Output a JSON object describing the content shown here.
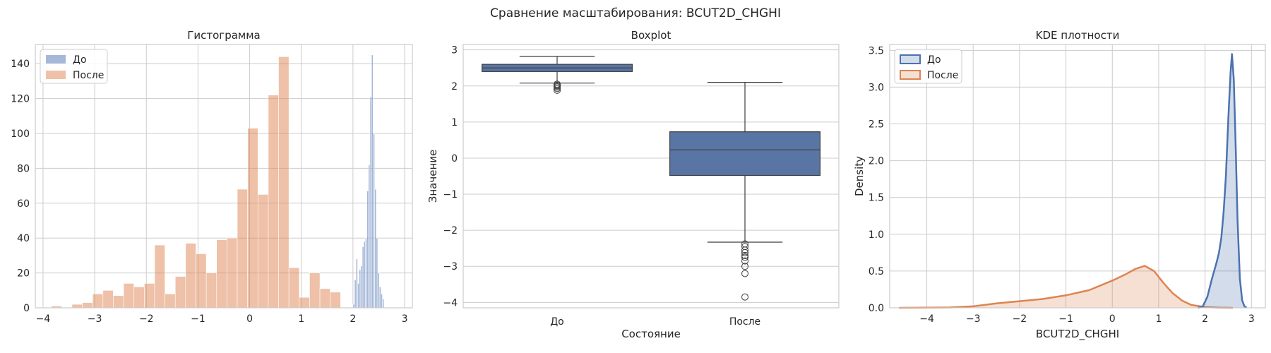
{
  "suptitle": "Сравнение масштабирования: BCUT2D_CHGHI",
  "colors": {
    "before": "#4c72b0",
    "after": "#dd8452",
    "box_fill": "#5875a4",
    "grid": "#cccccc",
    "spine": "#cccccc",
    "text": "#262626"
  },
  "chart_data": [
    {
      "type": "bar",
      "subtype": "histogram",
      "title": "Гистограмма",
      "xlabel": "",
      "ylabel": "",
      "xlim": [
        -4.15,
        3.15
      ],
      "ylim": [
        0,
        151
      ],
      "xticks": [
        -4,
        -3,
        -2,
        -1,
        0,
        1,
        2,
        3
      ],
      "yticks": [
        0,
        20,
        40,
        60,
        80,
        100,
        120,
        140
      ],
      "legend": {
        "position": "top-left",
        "entries": [
          "До",
          "После"
        ]
      },
      "series": [
        {
          "name": "После",
          "color": "#dd8452",
          "bin_start": -3.84,
          "bin_width": 0.2,
          "counts": [
            1,
            0,
            2,
            3,
            8,
            10,
            7,
            14,
            12,
            14,
            36,
            8,
            18,
            37,
            31,
            20,
            39,
            40,
            68,
            103,
            65,
            122,
            144,
            23,
            6,
            20,
            11,
            9
          ]
        },
        {
          "name": "До",
          "color": "#4c72b0",
          "bin_start": 2.0,
          "bin_width": 0.03,
          "counts": [
            2,
            16,
            28,
            14,
            22,
            24,
            35,
            38,
            40,
            67,
            82,
            121,
            145,
            100,
            68,
            40,
            20,
            12,
            8,
            5
          ]
        }
      ]
    },
    {
      "type": "box",
      "title": "Boxplot",
      "xlabel": "Состояние",
      "ylabel": "Значение",
      "ylim": [
        -4.15,
        3.15
      ],
      "yticks": [
        -4,
        -3,
        -2,
        -1,
        0,
        1,
        2,
        3
      ],
      "categories": [
        "До",
        "После"
      ],
      "boxes": [
        {
          "category": "До",
          "whisker_low": 2.08,
          "q1": 2.4,
          "median": 2.5,
          "q3": 2.6,
          "whisker_high": 2.82,
          "outliers": [
            1.88,
            1.93,
            1.97,
            2.0,
            2.02,
            2.05
          ]
        },
        {
          "category": "После",
          "whisker_low": -2.33,
          "q1": -0.48,
          "median": 0.23,
          "q3": 0.73,
          "whisker_high": 2.1,
          "outliers": [
            -2.38,
            -2.45,
            -2.55,
            -2.62,
            -2.7,
            -2.75,
            -2.85,
            -3.0,
            -3.2,
            -3.85
          ]
        }
      ]
    },
    {
      "type": "area",
      "subtype": "kde",
      "title": "KDE плотности",
      "xlabel": "BCUT2D_CHGHI",
      "ylabel": "Density",
      "xlim": [
        -4.8,
        3.3
      ],
      "ylim": [
        0,
        3.58
      ],
      "xticks": [
        -4,
        -3,
        -2,
        -1,
        0,
        1,
        2,
        3
      ],
      "yticks": [
        0,
        0.5,
        1.0,
        1.5,
        2.0,
        2.5,
        3.0,
        3.5
      ],
      "ytick_labels": [
        "0.0",
        "0.5",
        "1.0",
        "1.5",
        "2.0",
        "2.5",
        "3.0",
        "3.5"
      ],
      "legend": {
        "position": "top-left",
        "entries": [
          "До",
          "После"
        ]
      },
      "series": [
        {
          "name": "До",
          "color": "#4c72b0",
          "x": [
            1.85,
            1.95,
            2.05,
            2.15,
            2.25,
            2.3,
            2.35,
            2.4,
            2.45,
            2.5,
            2.55,
            2.58,
            2.62,
            2.66,
            2.7,
            2.75,
            2.8,
            2.85,
            2.9
          ],
          "y": [
            0.0,
            0.02,
            0.15,
            0.4,
            0.62,
            0.75,
            0.95,
            1.3,
            1.8,
            2.55,
            3.2,
            3.45,
            3.1,
            2.2,
            1.2,
            0.4,
            0.1,
            0.02,
            0.0
          ]
        },
        {
          "name": "После",
          "color": "#dd8452",
          "x": [
            -4.6,
            -4.0,
            -3.5,
            -3.0,
            -2.5,
            -2.0,
            -1.5,
            -1.0,
            -0.5,
            0.0,
            0.3,
            0.5,
            0.7,
            0.9,
            1.1,
            1.3,
            1.5,
            1.7,
            2.0,
            2.3,
            2.6
          ],
          "y": [
            0.0,
            0.002,
            0.005,
            0.02,
            0.06,
            0.09,
            0.12,
            0.17,
            0.24,
            0.37,
            0.46,
            0.53,
            0.57,
            0.5,
            0.34,
            0.2,
            0.1,
            0.04,
            0.01,
            0.002,
            0.0
          ]
        }
      ]
    }
  ]
}
